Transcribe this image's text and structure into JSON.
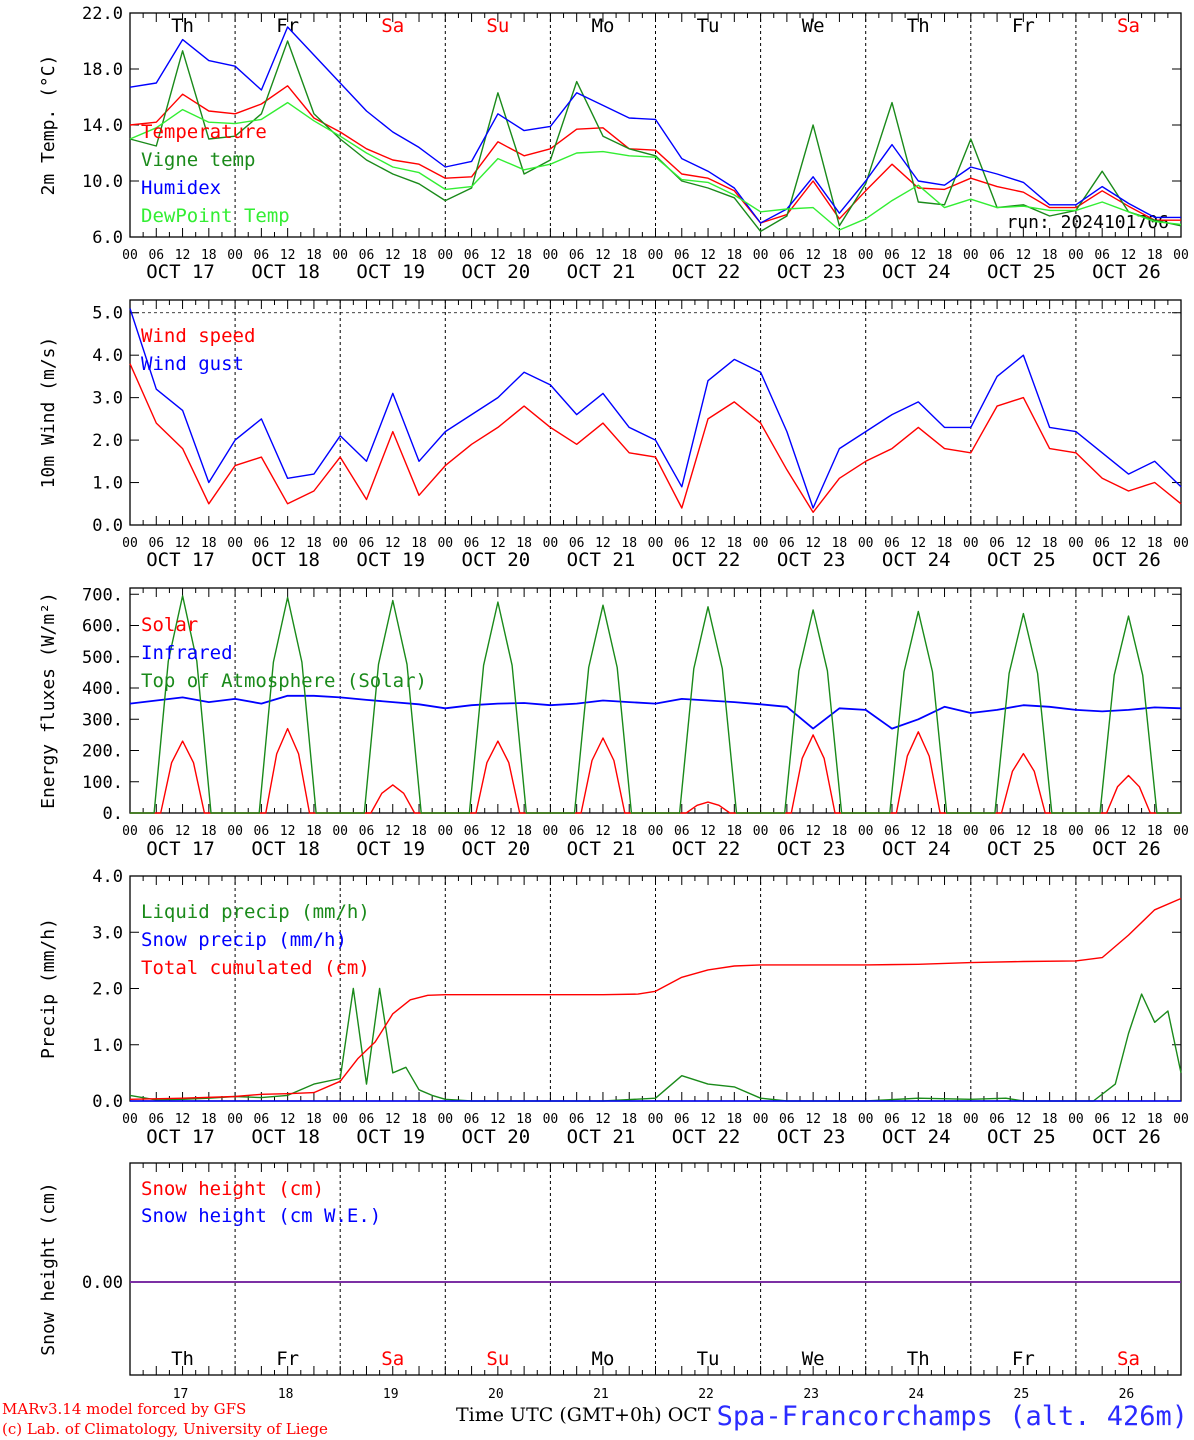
{
  "station": {
    "name": "Spa-Francorchamps (alt. 426m)"
  },
  "footer": {
    "model_line": "MARv3.14 model forced by GFS",
    "copyright_line": "(c) Lab. of Climatology, University of Liege",
    "time_label": "Time UTC (GMT+0h) OCT"
  },
  "run_label": "run: 2024101706",
  "days": {
    "names": [
      "Th",
      "Fr",
      "Sa",
      "Su",
      "Mo",
      "Tu",
      "We",
      "Th",
      "Fr",
      "Sa"
    ],
    "weekend": [
      false,
      false,
      true,
      true,
      false,
      false,
      false,
      false,
      false,
      true
    ],
    "dates": [
      "OCT 17",
      "OCT 18",
      "OCT 19",
      "OCT 20",
      "OCT 21",
      "OCT 22",
      "OCT 23",
      "OCT 24",
      "OCT 25",
      "OCT 26"
    ],
    "day_numbers": [
      "17",
      "18",
      "19",
      "20",
      "21",
      "22",
      "23",
      "24",
      "25",
      "26"
    ],
    "hour_ticks": [
      "00",
      "06",
      "12",
      "18"
    ],
    "final_tick": "00"
  },
  "colors": {
    "red": "#ff0000",
    "green": "#1a8a1a",
    "blue": "#0000ff",
    "lightgreen": "#33ee33",
    "purple": "#7b2ea0",
    "weekend": "#ff0000"
  },
  "chart_data": [
    {
      "type": "line",
      "ylabel": "2m Temp. (°C)",
      "ylim": [
        6,
        22
      ],
      "yticks": [
        "6.0",
        "10.0",
        "14.0",
        "18.0",
        "22.0"
      ],
      "x_hours": [
        0,
        6,
        12,
        18,
        24,
        30,
        36,
        42,
        48,
        54,
        60,
        66,
        72,
        78,
        84,
        90,
        96,
        102,
        108,
        114,
        120,
        126,
        132,
        138,
        144,
        150,
        156,
        162,
        168,
        174,
        180,
        186,
        192,
        198,
        204,
        210,
        216,
        222,
        228,
        234,
        240
      ],
      "series": [
        {
          "name": "Temperature",
          "color": "red",
          "values": [
            14,
            14.2,
            16.2,
            15,
            14.8,
            15.5,
            16.8,
            14.5,
            13.5,
            12.3,
            11.5,
            11.2,
            10.2,
            10.3,
            12.8,
            11.8,
            12.3,
            13.7,
            13.8,
            12.3,
            12.2,
            10.5,
            10.2,
            9.3,
            7,
            7.6,
            10,
            7.3,
            9.3,
            11.2,
            9.5,
            9.4,
            10.2,
            9.6,
            9.2,
            8.1,
            8.1,
            9.3,
            8.2,
            7.2,
            7.2
          ]
        },
        {
          "name": "Vigne temp",
          "color": "green",
          "values": [
            13,
            12.5,
            19.3,
            13,
            13.2,
            14.8,
            20,
            14.8,
            13,
            11.5,
            10.5,
            9.8,
            8.6,
            9.5,
            16.3,
            10.5,
            11.5,
            17.1,
            13.2,
            12.3,
            11.8,
            10,
            9.5,
            8.8,
            6.4,
            7.5,
            14,
            6.8,
            9.8,
            15.6,
            8.5,
            8.3,
            13,
            8.1,
            8.3,
            7.5,
            7.9,
            10.7,
            7.8,
            7.2,
            6.8
          ]
        },
        {
          "name": "Humidex",
          "color": "blue",
          "values": [
            16.7,
            17,
            20.1,
            18.6,
            18.2,
            16.5,
            21,
            19,
            17,
            15,
            13.5,
            12.4,
            11,
            11.4,
            14.8,
            13.6,
            13.9,
            16.3,
            15.4,
            14.5,
            14.4,
            11.6,
            10.7,
            9.5,
            7,
            8,
            10.3,
            7.7,
            10,
            12.6,
            10,
            9.7,
            11,
            10.5,
            9.9,
            8.3,
            8.3,
            9.6,
            8.4,
            7.4,
            7.4
          ]
        },
        {
          "name": "DewPoint Temp",
          "color": "lightgreen",
          "values": [
            13,
            13.8,
            15.1,
            14.2,
            14.1,
            14.4,
            15.6,
            14.3,
            13.2,
            12,
            11,
            10.6,
            9.4,
            9.6,
            11.6,
            10.8,
            11.2,
            12,
            12.1,
            11.8,
            11.7,
            10.1,
            9.9,
            9,
            7.8,
            8,
            8.1,
            6.5,
            7.3,
            8.6,
            9.7,
            8.1,
            8.7,
            8.1,
            8.2,
            7.9,
            7.9,
            8.5,
            7.8,
            7.1,
            6.9
          ]
        }
      ]
    },
    {
      "type": "line",
      "ylabel": "10m Wind (m/s)",
      "ylim": [
        0,
        5.3
      ],
      "yticks": [
        "0.0",
        "1.0",
        "2.0",
        "3.0",
        "4.0",
        "5.0"
      ],
      "x_hours": [
        0,
        6,
        12,
        18,
        24,
        30,
        36,
        42,
        48,
        54,
        60,
        66,
        72,
        78,
        84,
        90,
        96,
        102,
        108,
        114,
        120,
        126,
        132,
        138,
        144,
        150,
        156,
        162,
        168,
        174,
        180,
        186,
        192,
        198,
        204,
        210,
        216,
        222,
        228,
        234,
        240
      ],
      "series": [
        {
          "name": "Wind speed",
          "color": "red",
          "values": [
            3.8,
            2.4,
            1.8,
            0.5,
            1.4,
            1.6,
            0.5,
            0.8,
            1.6,
            0.6,
            2.2,
            0.7,
            1.4,
            1.9,
            2.3,
            2.8,
            2.3,
            1.9,
            2.4,
            1.7,
            1.6,
            0.4,
            2.5,
            2.9,
            2.4,
            1.3,
            0.3,
            1.1,
            1.5,
            1.8,
            2.3,
            1.8,
            1.7,
            2.8,
            3,
            1.8,
            1.7,
            1.1,
            0.8,
            1,
            0.5
          ]
        },
        {
          "name": "Wind gust",
          "color": "blue",
          "values": [
            5.1,
            3.2,
            2.7,
            1,
            2,
            2.5,
            1.1,
            1.2,
            2.1,
            1.5,
            3.1,
            1.5,
            2.2,
            2.6,
            3,
            3.6,
            3.3,
            2.6,
            3.1,
            2.3,
            2,
            0.9,
            3.4,
            3.9,
            3.6,
            2.2,
            0.4,
            1.8,
            2.2,
            2.6,
            2.9,
            2.3,
            2.3,
            3.5,
            4,
            2.3,
            2.2,
            1.7,
            1.2,
            1.5,
            0.9
          ]
        }
      ]
    },
    {
      "type": "line",
      "ylabel": "Energy fluxes (W/m²)",
      "ylim": [
        0,
        720
      ],
      "yticks": [
        "0.",
        "100.",
        "200.",
        "300.",
        "400.",
        "500.",
        "600.",
        "700."
      ],
      "series": [
        {
          "name": "Solar",
          "color": "red",
          "kind": "daily_peaks",
          "values": [
            230,
            270,
            90,
            230,
            240,
            35,
            250,
            260,
            190,
            120
          ]
        },
        {
          "name": "Infrared",
          "color": "blue",
          "x_hours": [
            0,
            6,
            12,
            18,
            24,
            30,
            36,
            42,
            48,
            54,
            60,
            66,
            72,
            78,
            84,
            90,
            96,
            102,
            108,
            114,
            120,
            126,
            132,
            138,
            144,
            150,
            156,
            162,
            168,
            174,
            180,
            186,
            192,
            198,
            204,
            210,
            216,
            222,
            228,
            234,
            240
          ],
          "values": [
            350,
            360,
            370,
            355,
            365,
            350,
            375,
            375,
            370,
            362,
            355,
            348,
            335,
            345,
            350,
            352,
            345,
            350,
            360,
            355,
            350,
            365,
            360,
            355,
            348,
            340,
            270,
            335,
            330,
            270,
            300,
            340,
            320,
            330,
            345,
            340,
            330,
            325,
            330,
            338,
            335
          ]
        },
        {
          "name": "Top of Atmosphere (Solar)",
          "color": "green",
          "kind": "daily_peaks",
          "values": [
            695,
            690,
            680,
            675,
            665,
            660,
            650,
            645,
            638,
            630
          ]
        }
      ]
    },
    {
      "type": "line",
      "ylabel": "Precip (mm/h)",
      "ylim": [
        0,
        4
      ],
      "yticks": [
        "0.0",
        "1.0",
        "2.0",
        "3.0",
        "4.0"
      ],
      "series": [
        {
          "name": "Liquid precip (mm/h)",
          "color": "green",
          "x_hours": [
            0,
            6,
            12,
            18,
            24,
            30,
            36,
            42,
            48,
            51,
            54,
            57,
            60,
            63,
            66,
            69,
            72,
            78,
            96,
            108,
            120,
            126,
            132,
            138,
            144,
            150,
            156,
            168,
            180,
            192,
            200,
            204,
            210,
            220,
            225,
            228,
            231,
            234,
            237,
            240
          ],
          "values": [
            0.1,
            0.02,
            0.03,
            0.05,
            0.08,
            0.06,
            0.1,
            0.3,
            0.4,
            2,
            0.3,
            2,
            0.5,
            0.6,
            0.2,
            0.1,
            0.03,
            0,
            0,
            0,
            0.05,
            0.45,
            0.3,
            0.25,
            0.05,
            0,
            0,
            0,
            0.05,
            0.03,
            0.05,
            0,
            0,
            0,
            0.3,
            1.2,
            1.9,
            1.4,
            1.6,
            0.5
          ]
        },
        {
          "name": "Snow precip (mm/h)",
          "color": "blue",
          "x_hours": [
            0,
            240
          ],
          "values": [
            0,
            0
          ]
        },
        {
          "name": "Total cumulated (cm)",
          "color": "red",
          "x_hours": [
            0,
            12,
            24,
            30,
            36,
            42,
            48,
            52,
            56,
            60,
            64,
            68,
            72,
            84,
            96,
            108,
            116,
            120,
            126,
            132,
            138,
            144,
            156,
            168,
            180,
            192,
            204,
            216,
            222,
            228,
            234,
            240
          ],
          "values": [
            0.03,
            0.05,
            0.08,
            0.12,
            0.13,
            0.15,
            0.35,
            0.75,
            1.05,
            1.55,
            1.8,
            1.88,
            1.89,
            1.89,
            1.89,
            1.89,
            1.9,
            1.95,
            2.2,
            2.33,
            2.4,
            2.42,
            2.42,
            2.42,
            2.43,
            2.46,
            2.48,
            2.49,
            2.55,
            2.95,
            3.4,
            3.6
          ]
        }
      ]
    },
    {
      "type": "line",
      "ylabel": "Snow height (cm)",
      "yticks": [
        "0.00"
      ],
      "series": [
        {
          "name": "Snow height (cm)",
          "color": "red",
          "x_hours": [
            0,
            240
          ],
          "values": [
            0,
            0
          ]
        },
        {
          "name": "Snow height (cm W.E.)",
          "color": "blue",
          "x_hours": [
            0,
            240
          ],
          "values": [
            0,
            0
          ]
        }
      ]
    }
  ]
}
